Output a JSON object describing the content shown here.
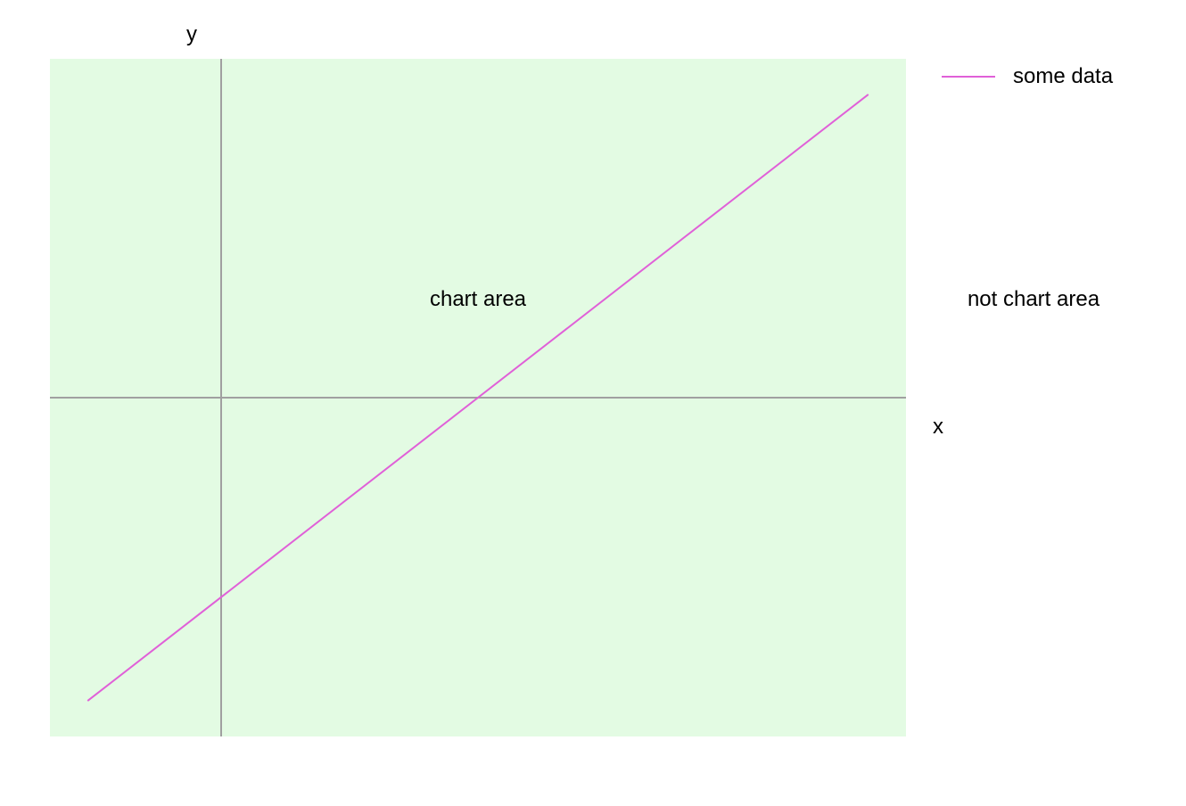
{
  "chart_data": {
    "type": "line",
    "xlabel": "x",
    "ylabel": "y",
    "xlim": [
      -1,
      4
    ],
    "ylim": [
      -2,
      2
    ],
    "grid": false,
    "legend_position": "top-right",
    "series": [
      {
        "name": "some data",
        "color": "#e060d8",
        "x": [
          -0.78,
          3.78
        ],
        "y": [
          -1.79,
          1.79
        ]
      }
    ],
    "annotations": {
      "chart_area_label": "chart area",
      "outside_label": "not chart area"
    }
  },
  "colors": {
    "plot_background": "#e3fbe3",
    "axis_line": "#a0a0a0",
    "page_background": "#ffffff"
  }
}
